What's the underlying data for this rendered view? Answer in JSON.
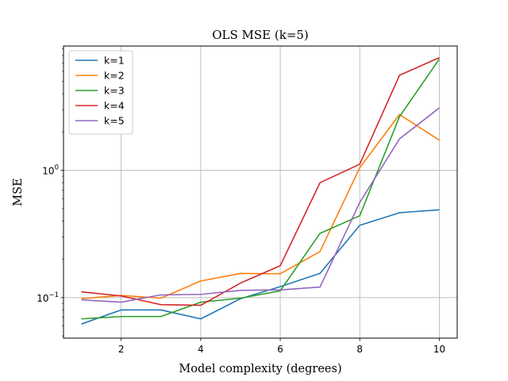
{
  "chart_data": {
    "type": "line",
    "title": "OLS MSE (k=5)",
    "xlabel": "Model complexity (degrees)",
    "ylabel": "MSE",
    "x": [
      1,
      2,
      3,
      4,
      5,
      6,
      7,
      8,
      9,
      10
    ],
    "xlim": [
      0.55,
      10.45
    ],
    "ylim": [
      0.048,
      9.5
    ],
    "yscale": "log",
    "x_ticks": [
      2,
      4,
      6,
      8,
      10
    ],
    "y_ticks": [
      {
        "value": 0.1,
        "label": "10",
        "exp": "−1"
      },
      {
        "value": 1,
        "label": "10",
        "exp": "0"
      }
    ],
    "grid": true,
    "legend_position": "upper-left",
    "series": [
      {
        "name": "k=1",
        "color": "#1f77b4",
        "values": [
          0.062,
          0.08,
          0.08,
          0.068,
          0.098,
          0.122,
          0.155,
          0.37,
          0.465,
          0.49
        ]
      },
      {
        "name": "k=2",
        "color": "#ff7f0e",
        "values": [
          0.098,
          0.104,
          0.099,
          0.135,
          0.155,
          0.154,
          0.23,
          1.05,
          2.75,
          1.73
        ]
      },
      {
        "name": "k=3",
        "color": "#2ca02c",
        "values": [
          0.068,
          0.071,
          0.071,
          0.092,
          0.099,
          0.113,
          0.32,
          0.44,
          2.65,
          7.5
        ]
      },
      {
        "name": "k=4",
        "color": "#d62728",
        "values": [
          0.111,
          0.103,
          0.088,
          0.087,
          0.13,
          0.178,
          0.8,
          1.12,
          5.6,
          7.7
        ]
      },
      {
        "name": "k=5",
        "color": "#9467bd",
        "values": [
          0.096,
          0.092,
          0.105,
          0.106,
          0.114,
          0.115,
          0.121,
          0.56,
          1.77,
          3.1
        ]
      }
    ]
  }
}
